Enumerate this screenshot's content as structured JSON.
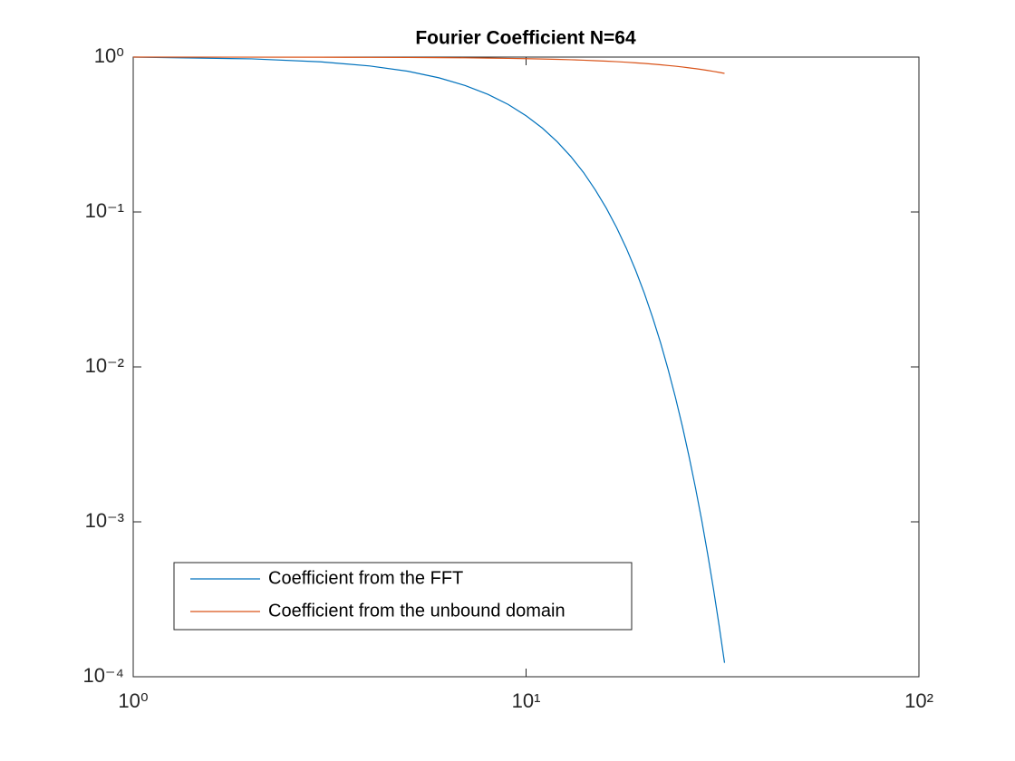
{
  "chart_data": {
    "type": "line",
    "title": "Fourier Coefficient N=64",
    "x": [
      1,
      2,
      3,
      4,
      5,
      6,
      7,
      8,
      9,
      10,
      11,
      12,
      13,
      14,
      15,
      16,
      17,
      18,
      19,
      20,
      21,
      22,
      23,
      24,
      25,
      26,
      27,
      28,
      29,
      30,
      31,
      32
    ],
    "series": [
      {
        "name": "Coefficient from the FFT",
        "color": "#0072bd",
        "values": [
          1,
          0.974,
          0.932,
          0.876,
          0.81,
          0.735,
          0.655,
          0.574,
          0.495,
          0.418,
          0.348,
          0.284,
          0.228,
          0.18,
          0.139,
          0.106,
          0.0793,
          0.0583,
          0.0421,
          0.0299,
          0.0208,
          0.0143,
          0.0096,
          0.00635,
          0.00413,
          0.00263,
          0.00165,
          0.00102,
          0.000616,
          0.000367,
          0.000214,
          0.000123
        ]
      },
      {
        "name": "Coefficient from the unbound domain",
        "color": "#d95319",
        "values": [
          1,
          0.999,
          0.998,
          0.996,
          0.994,
          0.992,
          0.989,
          0.985,
          0.981,
          0.977,
          0.972,
          0.967,
          0.961,
          0.955,
          0.948,
          0.941,
          0.934,
          0.926,
          0.918,
          0.91,
          0.901,
          0.892,
          0.882,
          0.873,
          0.863,
          0.852,
          0.842,
          0.831,
          0.82,
          0.808,
          0.797,
          0.785
        ]
      }
    ],
    "xscale": "log",
    "yscale": "log",
    "xlim": [
      1,
      100
    ],
    "ylim": [
      0.0001,
      1
    ],
    "xticks": [
      {
        "value": 1,
        "label": "10⁰"
      },
      {
        "value": 10,
        "label": "10¹"
      },
      {
        "value": 100,
        "label": "10²"
      }
    ],
    "yticks": [
      {
        "value": 0.0001,
        "label": "10⁻⁴"
      },
      {
        "value": 0.001,
        "label": "10⁻³"
      },
      {
        "value": 0.01,
        "label": "10⁻²"
      },
      {
        "value": 0.1,
        "label": "10⁻¹"
      },
      {
        "value": 1,
        "label": "10⁰"
      }
    ],
    "legend": "lower left"
  }
}
